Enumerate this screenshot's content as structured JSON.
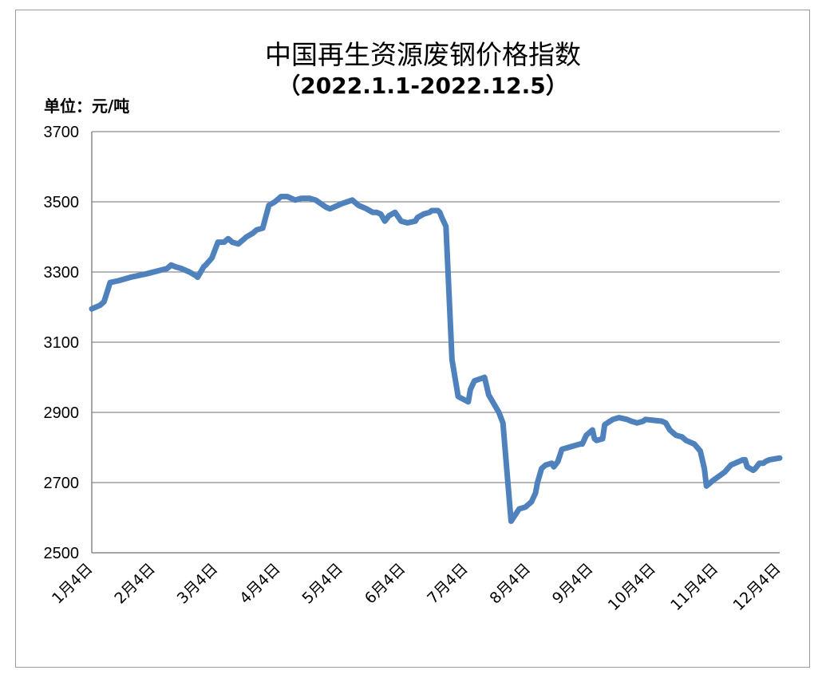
{
  "chart_data": {
    "type": "line",
    "title": "中国再生资源废钢价格指数",
    "subtitle": "（2022.1.1-2022.12.5）",
    "ylabel": "单位：元/吨",
    "ylim": [
      2500,
      3700
    ],
    "yticks": [
      "2500",
      "2700",
      "2900",
      "3100",
      "3300",
      "3500",
      "3700"
    ],
    "xticks": [
      "1月4日",
      "2月4日",
      "3月4日",
      "4月4日",
      "5月4日",
      "6月4日",
      "7月4日",
      "8月4日",
      "9月4日",
      "10月4日",
      "11月4日",
      "12月4日"
    ],
    "grid": true,
    "line_color": "#4f81bd",
    "series": [
      {
        "x": [
          "2022-01-01",
          "2022-01-05",
          "2022-01-07",
          "2022-01-10",
          "2022-01-14",
          "2022-01-20",
          "2022-01-28",
          "2022-02-07",
          "2022-02-09",
          "2022-02-11",
          "2022-02-14",
          "2022-02-18",
          "2022-02-21",
          "2022-02-22",
          "2022-02-25",
          "2022-02-26",
          "2022-03-01",
          "2022-03-04",
          "2022-03-07",
          "2022-03-09",
          "2022-03-11",
          "2022-03-14",
          "2022-03-18",
          "2022-03-21",
          "2022-03-23",
          "2022-03-26",
          "2022-03-29",
          "2022-04-01",
          "2022-04-04",
          "2022-04-07",
          "2022-04-11",
          "2022-04-14",
          "2022-04-18",
          "2022-04-21",
          "2022-04-26",
          "2022-04-28",
          "2022-04-30",
          "2022-05-02",
          "2022-05-04",
          "2022-05-09",
          "2022-05-12",
          "2022-05-16",
          "2022-05-19",
          "2022-05-21",
          "2022-05-23",
          "2022-05-25",
          "2022-05-27",
          "2022-05-30",
          "2022-06-02",
          "2022-06-05",
          "2022-06-09",
          "2022-06-10",
          "2022-06-13",
          "2022-06-16",
          "2022-06-17",
          "2022-06-18",
          "2022-06-20",
          "2022-06-21",
          "2022-06-22",
          "2022-06-24",
          "2022-06-27",
          "2022-06-30",
          "2022-07-05",
          "2022-07-06",
          "2022-07-08",
          "2022-07-13",
          "2022-07-15",
          "2022-07-17",
          "2022-07-20",
          "2022-07-22",
          "2022-07-26",
          "2022-07-30",
          "2022-08-02",
          "2022-08-05",
          "2022-08-07",
          "2022-08-08",
          "2022-08-10",
          "2022-08-12",
          "2022-08-15",
          "2022-08-16",
          "2022-08-18",
          "2022-08-20",
          "2022-08-29",
          "2022-08-30",
          "2022-09-01",
          "2022-09-04",
          "2022-09-05",
          "2022-09-06",
          "2022-09-09",
          "2022-09-10",
          "2022-09-14",
          "2022-09-17",
          "2022-09-21",
          "2022-09-23",
          "2022-09-26",
          "2022-09-29",
          "2022-09-30",
          "2022-10-08",
          "2022-10-10",
          "2022-10-12",
          "2022-10-15",
          "2022-10-18",
          "2022-10-20",
          "2022-10-24",
          "2022-10-27",
          "2022-10-29",
          "2022-10-30",
          "2022-11-02",
          "2022-11-08",
          "2022-11-11",
          "2022-11-17",
          "2022-11-18",
          "2022-11-19",
          "2022-11-22",
          "2022-11-23",
          "2022-11-25",
          "2022-11-27",
          "2022-11-28",
          "2022-11-30",
          "2022-12-05"
        ],
        "y": [
          3195,
          3205,
          3215,
          3270,
          3275,
          3285,
          3295,
          3310,
          3320,
          3315,
          3310,
          3300,
          3290,
          3285,
          3315,
          3320,
          3340,
          3385,
          3385,
          3395,
          3385,
          3380,
          3400,
          3410,
          3420,
          3425,
          3490,
          3500,
          3515,
          3515,
          3505,
          3510,
          3510,
          3505,
          3485,
          3480,
          3485,
          3490,
          3495,
          3505,
          3490,
          3480,
          3470,
          3470,
          3465,
          3445,
          3460,
          3470,
          3445,
          3440,
          3445,
          3455,
          3465,
          3470,
          3475,
          3475,
          3475,
          3470,
          3455,
          3430,
          3050,
          2945,
          2930,
          2965,
          2990,
          3000,
          2950,
          2930,
          2900,
          2870,
          2590,
          2625,
          2630,
          2645,
          2670,
          2700,
          2740,
          2750,
          2755,
          2745,
          2760,
          2795,
          2810,
          2810,
          2835,
          2850,
          2825,
          2820,
          2825,
          2865,
          2880,
          2885,
          2880,
          2875,
          2870,
          2875,
          2880,
          2875,
          2870,
          2850,
          2835,
          2830,
          2820,
          2810,
          2790,
          2740,
          2690,
          2705,
          2730,
          2750,
          2765,
          2765,
          2745,
          2735,
          2740,
          2755,
          2755,
          2760,
          2765,
          2770
        ]
      }
    ]
  }
}
